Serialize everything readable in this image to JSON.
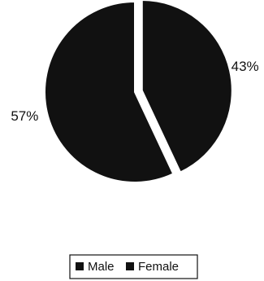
{
  "chart_data": {
    "type": "pie",
    "slices": [
      {
        "label": "Male",
        "value": 43,
        "display": "43%",
        "color": "#111111"
      },
      {
        "label": "Female",
        "value": 57,
        "display": "57%",
        "color": "#111111"
      }
    ],
    "start_angle_deg": 0,
    "exploded_slice": "Male",
    "legend": {
      "placement": "bottom",
      "entries": [
        "Male",
        "Female"
      ]
    }
  }
}
